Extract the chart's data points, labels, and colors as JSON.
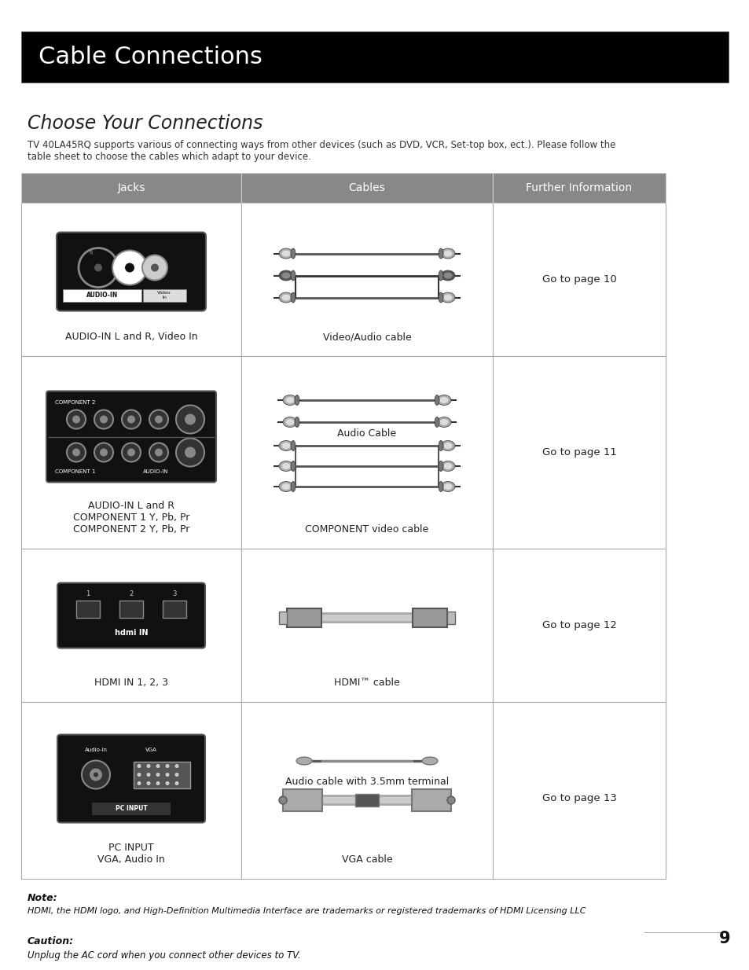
{
  "title_bar": "Cable Connections",
  "title_bar_bg": "#000000",
  "title_bar_fg": "#ffffff",
  "section_title": "Choose Your Connections",
  "intro_line1": "TV 40LA45RQ supports various of connecting ways from other devices (such as DVD, VCR, Set-top box, ect.). Please follow the",
  "intro_line2": "table sheet to choose the cables which adapt to your device.",
  "table_header_bg": "#888888",
  "table_header_fg": "#ffffff",
  "table_border": "#aaaaaa",
  "col_headers": [
    "Jacks",
    "Cables",
    "Further Information"
  ],
  "rows": [
    {
      "jack_label": "AUDIO-IN L and R, Video In",
      "cable_label": "Video/Audio cable",
      "info": "Go to page 10"
    },
    {
      "jack_label": "AUDIO-IN L and R\nCOMPONENT 1 Y, Pb, Pr\nCOMPONENT 2 Y, Pb, Pr",
      "cable_label_top": "Audio Cable",
      "cable_label_bot": "COMPONENT video cable",
      "info": "Go to page 11"
    },
    {
      "jack_label": "HDMI IN 1, 2, 3",
      "cable_label": "HDMI™ cable",
      "info": "Go to page 12"
    },
    {
      "jack_label": "PC INPUT\nVGA, Audio In",
      "cable_label_top": "Audio cable with 3.5mm terminal",
      "cable_label_bot": "VGA cable",
      "info": "Go to page 13"
    }
  ],
  "note_bold": "Note:",
  "note_text": "HDMI, the HDMI logo, and High-Definition Multimedia Interface are trademarks or registered trademarks of HDMI Licensing LLC",
  "caution_bold": "Caution:",
  "caution_text": "Unplug the AC cord when you connect other devices to TV.",
  "page_number": "9",
  "bg_color": "#ffffff"
}
